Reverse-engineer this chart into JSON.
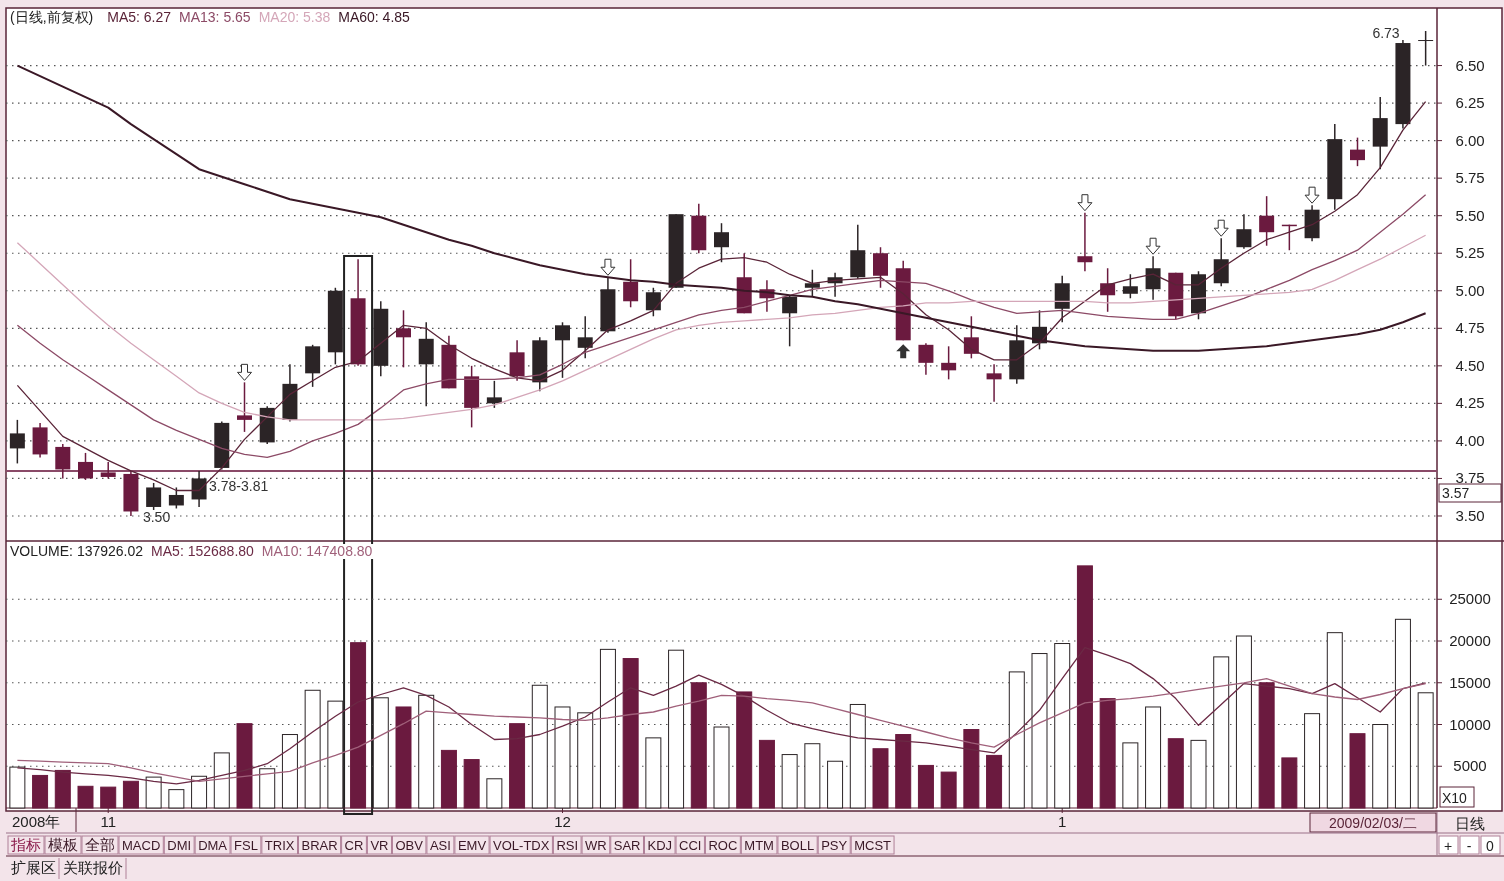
{
  "chart_data": [
    {
      "type": "candlestick",
      "title": "(日线,前复权)",
      "legend": "top left",
      "grid": "y",
      "tick_labels": "y",
      "categories": [
        null,
        null,
        null,
        null,
        null,
        null,
        null,
        null,
        null,
        null,
        null,
        null,
        null,
        null,
        null,
        null,
        null,
        null,
        null,
        null,
        null,
        null,
        null,
        null,
        null,
        null,
        null,
        null,
        null,
        null,
        null,
        null,
        null,
        null,
        null,
        null,
        null,
        null,
        null,
        null,
        null,
        null,
        null,
        null,
        null,
        null,
        null,
        null,
        null,
        null,
        null,
        null,
        null,
        null,
        null,
        null,
        null,
        null,
        null,
        null,
        null,
        null,
        null
      ],
      "ohlc": [
        [
          3.95,
          4.14,
          3.85,
          4.05
        ],
        [
          4.09,
          4.12,
          3.89,
          3.91
        ],
        [
          3.96,
          3.98,
          3.75,
          3.81
        ],
        [
          3.86,
          3.92,
          3.74,
          3.75
        ],
        [
          3.79,
          3.86,
          3.75,
          3.76
        ],
        [
          3.78,
          3.8,
          3.5,
          3.53
        ],
        [
          3.56,
          3.72,
          3.54,
          3.69
        ],
        [
          3.57,
          3.69,
          3.55,
          3.64
        ],
        [
          3.61,
          3.8,
          3.56,
          3.75
        ],
        [
          3.82,
          4.13,
          3.81,
          4.12
        ],
        [
          4.17,
          4.39,
          4.06,
          4.14
        ],
        [
          3.99,
          4.23,
          3.98,
          4.22
        ],
        [
          4.14,
          4.51,
          4.13,
          4.38
        ],
        [
          4.45,
          4.64,
          4.36,
          4.63
        ],
        [
          4.59,
          5.02,
          4.51,
          5.0
        ],
        [
          4.95,
          5.21,
          4.5,
          4.51
        ],
        [
          4.5,
          4.93,
          4.43,
          4.88
        ],
        [
          4.75,
          4.87,
          4.49,
          4.69
        ],
        [
          4.51,
          4.79,
          4.23,
          4.68
        ],
        [
          4.64,
          4.7,
          4.35,
          4.35
        ],
        [
          4.43,
          4.5,
          4.09,
          4.22
        ],
        [
          4.25,
          4.4,
          4.22,
          4.29
        ],
        [
          4.59,
          4.67,
          4.4,
          4.43
        ],
        [
          4.39,
          4.69,
          4.33,
          4.67
        ],
        [
          4.67,
          4.79,
          4.42,
          4.77
        ],
        [
          4.62,
          4.83,
          4.55,
          4.69
        ],
        [
          4.73,
          5.09,
          4.72,
          5.01
        ],
        [
          5.06,
          5.21,
          4.89,
          4.93
        ],
        [
          4.87,
          5.02,
          4.83,
          4.99
        ],
        [
          5.02,
          5.51,
          5.02,
          5.51
        ],
        [
          5.5,
          5.58,
          5.25,
          5.27
        ],
        [
          5.29,
          5.45,
          5.19,
          5.39
        ],
        [
          5.09,
          5.25,
          4.85,
          4.85
        ],
        [
          5.01,
          5.07,
          4.86,
          4.95
        ],
        [
          4.85,
          4.97,
          4.63,
          4.96
        ],
        [
          5.02,
          5.14,
          4.96,
          5.05
        ],
        [
          5.05,
          5.12,
          4.96,
          5.09
        ],
        [
          5.09,
          5.44,
          5.08,
          5.27
        ],
        [
          5.25,
          5.29,
          5.02,
          5.1
        ],
        [
          5.15,
          5.2,
          4.67,
          4.67
        ],
        [
          4.64,
          4.65,
          4.44,
          4.52
        ],
        [
          4.52,
          4.63,
          4.41,
          4.47
        ],
        [
          4.69,
          4.83,
          4.55,
          4.58
        ],
        [
          4.45,
          4.51,
          4.26,
          4.41
        ],
        [
          4.41,
          4.77,
          4.38,
          4.67
        ],
        [
          4.65,
          4.87,
          4.61,
          4.76
        ],
        [
          4.88,
          5.1,
          4.79,
          5.05
        ],
        [
          5.23,
          5.52,
          5.13,
          5.19
        ],
        [
          5.05,
          5.15,
          4.86,
          4.97
        ],
        [
          4.98,
          5.11,
          4.95,
          5.03
        ],
        [
          5.01,
          5.23,
          4.94,
          5.15
        ],
        [
          5.12,
          5.12,
          4.81,
          4.83
        ],
        [
          4.85,
          5.13,
          4.81,
          5.11
        ],
        [
          5.05,
          5.35,
          5.03,
          5.21
        ],
        [
          5.29,
          5.51,
          5.28,
          5.41
        ],
        [
          5.5,
          5.63,
          5.3,
          5.39
        ],
        [
          5.44,
          5.44,
          5.27,
          5.43
        ],
        [
          5.35,
          5.57,
          5.33,
          5.54
        ],
        [
          5.61,
          6.11,
          5.54,
          6.01
        ],
        [
          5.94,
          6.02,
          5.83,
          5.87
        ],
        [
          5.96,
          6.29,
          5.81,
          6.15
        ],
        [
          6.11,
          6.67,
          6.08,
          6.65
        ],
        [
          6.67,
          6.73,
          6.5,
          6.67
        ]
      ],
      "colors": [
        "#2b2426",
        "#6b1a3f",
        "#6b1a3f",
        "#6b1a3f",
        "#6b1a3f",
        "#6b1a3f",
        "#2b2426",
        "#2b2426",
        "#2b2426",
        "#2b2426",
        "#6b1a3f",
        "#2b2426",
        "#2b2426",
        "#2b2426",
        "#2b2426",
        "#6b1a3f",
        "#2b2426",
        "#6b1a3f",
        "#2b2426",
        "#6b1a3f",
        "#6b1a3f",
        "#2b2426",
        "#6b1a3f",
        "#2b2426",
        "#2b2426",
        "#2b2426",
        "#2b2426",
        "#6b1a3f",
        "#2b2426",
        "#2b2426",
        "#6b1a3f",
        "#2b2426",
        "#6b1a3f",
        "#6b1a3f",
        "#2b2426",
        "#2b2426",
        "#2b2426",
        "#2b2426",
        "#6b1a3f",
        "#6b1a3f",
        "#6b1a3f",
        "#6b1a3f",
        "#6b1a3f",
        "#6b1a3f",
        "#2b2426",
        "#2b2426",
        "#2b2426",
        "#6b1a3f",
        "#6b1a3f",
        "#2b2426",
        "#2b2426",
        "#6b1a3f",
        "#2b2426",
        "#2b2426",
        "#2b2426",
        "#6b1a3f",
        "#6b1a3f",
        "#2b2426",
        "#2b2426",
        "#6b1a3f",
        "#2b2426",
        "#2b2426",
        "#2b2426"
      ],
      "series": [
        {
          "name": "MA5: 6.27",
          "type": "line",
          "color": "#5a2438",
          "values": [
            4.37,
            4.2,
            4.03,
            3.95,
            3.87,
            3.8,
            3.74,
            3.67,
            3.67,
            3.82,
            4.01,
            4.16,
            4.31,
            4.4,
            4.49,
            4.53,
            4.65,
            4.77,
            4.75,
            4.64,
            4.55,
            4.48,
            4.42,
            4.4,
            4.47,
            4.6,
            4.74,
            4.8,
            4.87,
            5.05,
            5.15,
            5.21,
            5.22,
            5.19,
            5.11,
            5.05,
            5.07,
            5.08,
            5.09,
            4.98,
            4.84,
            4.74,
            4.61,
            4.54,
            4.54,
            4.65,
            4.82,
            4.93,
            5.04,
            5.08,
            5.11,
            5.04,
            5.04,
            5.15,
            5.25,
            5.34,
            5.39,
            5.44,
            5.53,
            5.64,
            5.82,
            6.07,
            6.26
          ]
        },
        {
          "name": "MA13: 5.65",
          "type": "line",
          "color": "#8c4a66",
          "values": [
            4.77,
            4.65,
            4.54,
            4.44,
            4.34,
            4.24,
            4.14,
            4.07,
            4.01,
            3.95,
            3.91,
            3.89,
            3.93,
            4.0,
            4.05,
            4.11,
            4.22,
            4.34,
            4.38,
            4.41,
            4.41,
            4.41,
            4.42,
            4.44,
            4.51,
            4.59,
            4.64,
            4.69,
            4.74,
            4.79,
            4.84,
            4.87,
            4.89,
            4.93,
            4.97,
            5.01,
            5.03,
            5.05,
            5.07,
            5.06,
            5.05,
            5.0,
            4.94,
            4.89,
            4.85,
            4.86,
            4.87,
            4.85,
            4.83,
            4.82,
            4.81,
            4.81,
            4.85,
            4.9,
            4.95,
            5.01,
            5.07,
            5.14,
            5.2,
            5.27,
            5.39,
            5.51,
            5.64
          ]
        },
        {
          "name": "MA20: 5.38",
          "type": "line",
          "color": "#d4a6b8",
          "values": [
            5.32,
            5.18,
            5.04,
            4.9,
            4.77,
            4.65,
            4.54,
            4.43,
            4.32,
            4.25,
            4.19,
            4.16,
            4.14,
            4.14,
            4.14,
            4.14,
            4.14,
            4.15,
            4.17,
            4.19,
            4.21,
            4.24,
            4.29,
            4.34,
            4.4,
            4.47,
            4.54,
            4.61,
            4.68,
            4.74,
            4.77,
            4.79,
            4.8,
            4.81,
            4.82,
            4.84,
            4.85,
            4.87,
            4.89,
            4.9,
            4.92,
            4.92,
            4.93,
            4.93,
            4.93,
            4.93,
            4.93,
            4.93,
            4.92,
            4.92,
            4.93,
            4.94,
            4.95,
            4.96,
            4.97,
            4.98,
            4.99,
            5.01,
            5.07,
            5.14,
            5.21,
            5.29,
            5.37
          ]
        },
        {
          "name": "MA60: 4.85",
          "type": "line",
          "color": "#3a1826",
          "values": [
            6.5,
            6.43,
            6.36,
            6.29,
            6.22,
            6.11,
            6.01,
            5.91,
            5.81,
            5.76,
            5.71,
            5.66,
            5.61,
            5.58,
            5.55,
            5.52,
            5.49,
            5.44,
            5.39,
            5.34,
            5.3,
            5.25,
            5.21,
            5.17,
            5.14,
            5.11,
            5.09,
            5.07,
            5.06,
            5.04,
            5.03,
            5.02,
            5.0,
            4.99,
            4.97,
            4.96,
            4.93,
            4.91,
            4.88,
            4.85,
            4.82,
            4.79,
            4.76,
            4.73,
            4.7,
            4.67,
            4.65,
            4.63,
            4.62,
            4.61,
            4.6,
            4.6,
            4.6,
            4.61,
            4.62,
            4.63,
            4.65,
            4.67,
            4.69,
            4.71,
            4.74,
            4.79,
            4.85
          ]
        }
      ],
      "ylim": [
        3.34,
        6.87
      ],
      "yticks": [
        {
          "value": 3.5,
          "label": "3.50"
        },
        {
          "value": 3.75,
          "label": "3.75"
        },
        {
          "value": 4.0,
          "label": "4.00"
        },
        {
          "value": 4.25,
          "label": "4.25"
        },
        {
          "value": 4.5,
          "label": "4.50"
        },
        {
          "value": 4.75,
          "label": "4.75"
        },
        {
          "value": 5.0,
          "label": "5.00"
        },
        {
          "value": 5.25,
          "label": "5.25"
        },
        {
          "value": 5.5,
          "label": "5.50"
        },
        {
          "value": 5.75,
          "label": "5.75"
        },
        {
          "value": 6.0,
          "label": "6.00"
        },
        {
          "value": 6.25,
          "label": "6.25"
        },
        {
          "value": 6.5,
          "label": "6.50"
        }
      ],
      "ref_lines": [
        {
          "axis": "y",
          "value": 3.8,
          "color": "#8a4a68"
        }
      ],
      "annotations": [
        "3.50",
        "6.73",
        "3.78-3.81",
        "3.57"
      ]
    },
    {
      "type": "bar",
      "legend": "top left",
      "grid": "y",
      "categories": [
        null,
        null,
        null,
        null,
        "11",
        null,
        null,
        null,
        null,
        null,
        null,
        null,
        null,
        null,
        null,
        null,
        null,
        null,
        null,
        null,
        null,
        null,
        null,
        null,
        "12",
        null,
        null,
        null,
        null,
        null,
        null,
        null,
        null,
        null,
        null,
        null,
        null,
        null,
        null,
        null,
        null,
        null,
        null,
        null,
        null,
        null,
        "1",
        null,
        null,
        null,
        null,
        null,
        null,
        null,
        null,
        null,
        null,
        null,
        null,
        null,
        null,
        null,
        null
      ],
      "series": [
        {
          "name": "VOLUME: 137926.02",
          "type": "bar",
          "values": [
            4900,
            3900,
            4500,
            2600,
            2500,
            3200,
            3700,
            2200,
            3800,
            6600,
            10100,
            4700,
            8800,
            14100,
            12800,
            19800,
            13200,
            12100,
            13500,
            6900,
            5800,
            3500,
            10100,
            14700,
            12100,
            11400,
            19000,
            17900,
            8400,
            18900,
            15000,
            9700,
            13900,
            8100,
            6400,
            7700,
            5600,
            12400,
            7100,
            8800,
            5100,
            4300,
            9400,
            6300,
            16300,
            18500,
            19700,
            29000,
            13100,
            7800,
            12100,
            8300,
            8100,
            18100,
            20600,
            15000,
            6000,
            11300,
            21000,
            8900,
            10000,
            22600,
            13800
          ],
          "colors": [
            "#ffffff",
            "#6b1a3f",
            "#6b1a3f",
            "#6b1a3f",
            "#6b1a3f",
            "#6b1a3f",
            "#ffffff",
            "#ffffff",
            "#ffffff",
            "#ffffff",
            "#6b1a3f",
            "#ffffff",
            "#ffffff",
            "#ffffff",
            "#ffffff",
            "#6b1a3f",
            "#ffffff",
            "#6b1a3f",
            "#ffffff",
            "#6b1a3f",
            "#6b1a3f",
            "#ffffff",
            "#6b1a3f",
            "#ffffff",
            "#ffffff",
            "#ffffff",
            "#ffffff",
            "#6b1a3f",
            "#ffffff",
            "#ffffff",
            "#6b1a3f",
            "#ffffff",
            "#6b1a3f",
            "#6b1a3f",
            "#ffffff",
            "#ffffff",
            "#ffffff",
            "#ffffff",
            "#6b1a3f",
            "#6b1a3f",
            "#6b1a3f",
            "#6b1a3f",
            "#6b1a3f",
            "#6b1a3f",
            "#ffffff",
            "#ffffff",
            "#ffffff",
            "#6b1a3f",
            "#6b1a3f",
            "#ffffff",
            "#ffffff",
            "#6b1a3f",
            "#ffffff",
            "#ffffff",
            "#ffffff",
            "#6b1a3f",
            "#6b1a3f",
            "#ffffff",
            "#ffffff",
            "#6b1a3f",
            "#ffffff",
            "#ffffff",
            "#ffffff"
          ]
        },
        {
          "name": "MA5: 152688.80",
          "type": "line",
          "color": "#6b2a45",
          "values": [
            4800,
            4600,
            4300,
            4100,
            3900,
            3600,
            3200,
            2900,
            3300,
            3900,
            4500,
            5300,
            7100,
            9100,
            11000,
            12700,
            13600,
            14400,
            13500,
            12100,
            10000,
            8200,
            8300,
            8800,
            9800,
            10900,
            12700,
            14400,
            13500,
            14600,
            15900,
            14800,
            13400,
            11700,
            10200,
            9500,
            8900,
            8400,
            8200,
            8000,
            7800,
            7400,
            7000,
            6600,
            9000,
            11700,
            15500,
            19200,
            18300,
            17300,
            15500,
            13100,
            9900,
            12400,
            14900,
            14600,
            14300,
            13700,
            14900,
            13200,
            11500,
            14300,
            15000
          ]
        },
        {
          "name": "MA10: 147408.80",
          "type": "line",
          "color": "#a0607a",
          "values": [
            5700,
            5600,
            5500,
            5400,
            5300,
            4800,
            4200,
            3700,
            3200,
            3500,
            3800,
            4100,
            4400,
            5400,
            6300,
            7300,
            8700,
            10100,
            11600,
            11400,
            11200,
            11000,
            10900,
            10800,
            10600,
            10500,
            10800,
            11200,
            11500,
            12200,
            12800,
            13500,
            13400,
            13100,
            12900,
            12600,
            11900,
            11200,
            10500,
            9800,
            9100,
            8400,
            7800,
            7300,
            8800,
            10200,
            11400,
            12600,
            12900,
            13100,
            13400,
            13800,
            14200,
            14600,
            15000,
            15500,
            14600,
            13700,
            13300,
            13000,
            13600,
            14300,
            14900
          ]
        }
      ],
      "ylim": [
        0,
        31500
      ],
      "yticks": [
        5000,
        10000,
        15000,
        20000,
        25000
      ],
      "annotations": [
        "X10",
        "2009/02/03/二",
        "日线",
        "指标",
        "模板",
        "全部",
        "MACD",
        "DMI",
        "DMA",
        "FSL",
        "TRIX",
        "BRAR",
        "CR",
        "VR",
        "OBV",
        "ASI",
        "EMV",
        "VOL-TDX",
        "RSI",
        "WR",
        "SAR",
        "KDJ",
        "CCI",
        "ROC",
        "MTM",
        "BOLL",
        "PSY",
        "MCST",
        "+",
        "-",
        "0",
        "扩展区",
        "关联报价",
        "2008年"
      ]
    }
  ]
}
